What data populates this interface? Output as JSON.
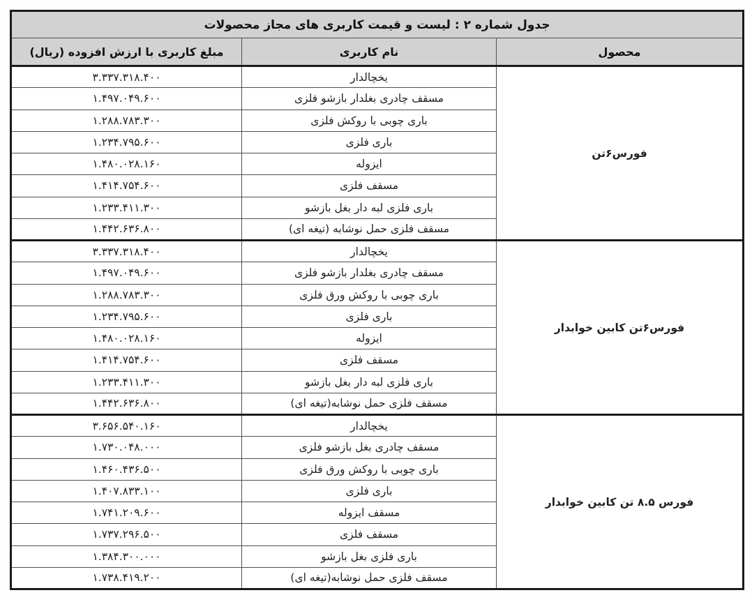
{
  "table": {
    "title": "جدول شماره ۲ : لیست و قیمت کاربری های مجاز محصولات",
    "columns": {
      "product": "محصول",
      "usage_name": "نام کاربری",
      "price": "مبلغ کاربری با ارزش افزوده (ریال)"
    },
    "groups": [
      {
        "product": "فورس۶تن",
        "rows": [
          {
            "name": "یخچالدار",
            "price": "۳.۳۳۷.۳۱۸.۴۰۰"
          },
          {
            "name": "مسقف چادری بغلدار بازشو فلزی",
            "price": "۱.۴۹۷.۰۴۹.۶۰۰"
          },
          {
            "name": "باری چوبی با روکش فلزی",
            "price": "۱.۲۸۸.۷۸۳.۳۰۰"
          },
          {
            "name": "باری فلزی",
            "price": "۱.۲۳۴.۷۹۵.۶۰۰"
          },
          {
            "name": "ایزوله",
            "price": "۱.۴۸۰.۰۲۸.۱۶۰"
          },
          {
            "name": "مسقف فلزی",
            "price": "۱.۴۱۴.۷۵۴.۶۰۰"
          },
          {
            "name": "باری فلزی لبه دار بغل بازشو",
            "price": "۱.۲۳۳.۴۱۱.۳۰۰"
          },
          {
            "name": "مسقف فلزی حمل نوشابه (تیغه ای)",
            "price": "۱.۴۴۲.۶۳۶.۸۰۰"
          }
        ]
      },
      {
        "product": "فورس۶تن کابین خوابدار",
        "rows": [
          {
            "name": "یخچالدار",
            "price": "۳.۳۳۷.۳۱۸.۴۰۰"
          },
          {
            "name": "مسقف چادری بغلدار بازشو فلزی",
            "price": "۱.۴۹۷.۰۴۹.۶۰۰"
          },
          {
            "name": "باری چوبی با روکش ورق فلزی",
            "price": "۱.۲۸۸.۷۸۳.۳۰۰"
          },
          {
            "name": "باری فلزی",
            "price": "۱.۲۳۴.۷۹۵.۶۰۰"
          },
          {
            "name": "ایزوله",
            "price": "۱.۴۸۰.۰۲۸.۱۶۰"
          },
          {
            "name": "مسقف فلزی",
            "price": "۱.۴۱۴.۷۵۴.۶۰۰"
          },
          {
            "name": "باری فلزی لبه دار بغل بازشو",
            "price": "۱.۲۳۳.۴۱۱.۳۰۰"
          },
          {
            "name": "مسقف فلزی حمل نوشابه(تیغه ای)",
            "price": "۱.۴۴۲.۶۳۶.۸۰۰"
          }
        ]
      },
      {
        "product": "فورس ۸.۵ تن کابین  خوابدار",
        "rows": [
          {
            "name": "یخچالدار",
            "price": "۳.۶۵۶.۵۴۰.۱۶۰"
          },
          {
            "name": "مسقف چادری بغل بازشو فلزی",
            "price": "۱.۷۳۰.۰۴۸.۰۰۰"
          },
          {
            "name": "باری چوبی با روکش ورق فلزی",
            "price": "۱.۴۶۰.۴۳۶.۵۰۰"
          },
          {
            "name": "باری فلزی",
            "price": "۱.۴۰۷.۸۳۳.۱۰۰"
          },
          {
            "name": "مسقف ایزوله",
            "price": "۱.۷۴۱.۲۰۹.۶۰۰"
          },
          {
            "name": "مسقف فلزی",
            "price": "۱.۷۳۷.۲۹۶.۵۰۰"
          },
          {
            "name": "باری فلزی بغل بازشو",
            "price": "۱.۳۸۴.۳۰۰.۰۰۰"
          },
          {
            "name": "مسقف فلزی حمل نوشابه(تیغه ای)",
            "price": "۱.۷۳۸.۴۱۹.۲۰۰"
          }
        ]
      }
    ]
  }
}
